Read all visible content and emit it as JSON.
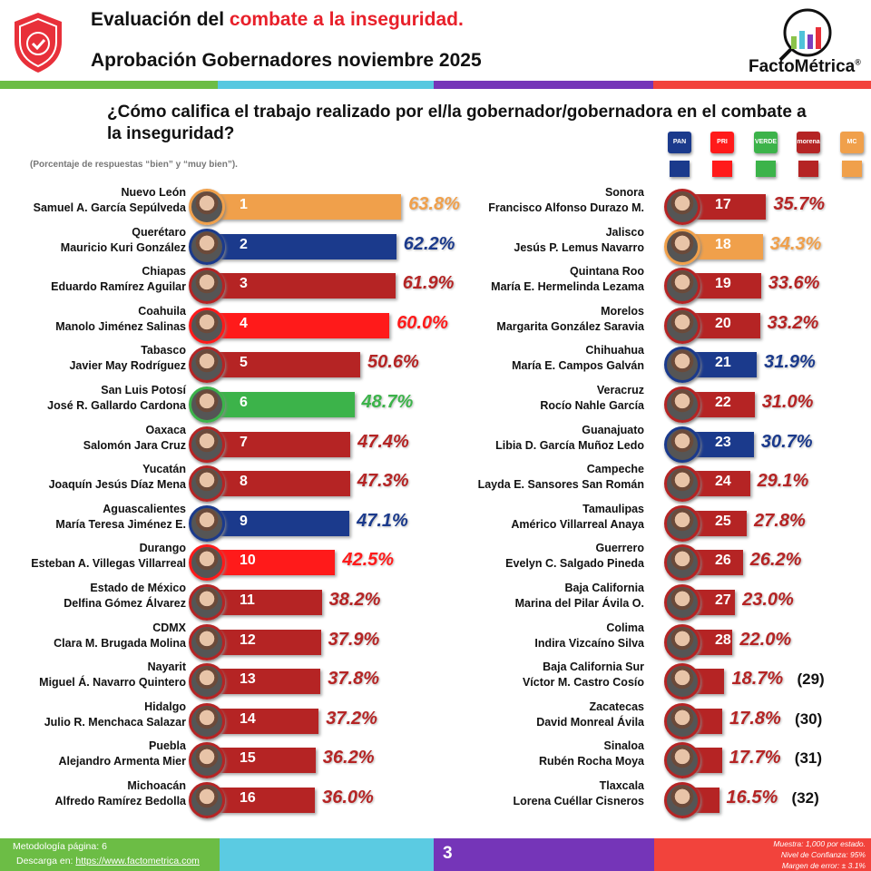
{
  "header": {
    "title_prefix": "Evaluación del ",
    "title_highlight": "combate a la inseguridad.",
    "subtitle": "Aprobación Gobernadores noviembre 2025",
    "brand": "FactoMétrica",
    "brand_mark": "®",
    "shield_icon": "shield-check-icon"
  },
  "question": "¿Cómo califica el trabajo realizado por el/la gobernador/gobernadora en el combate a la inseguridad?",
  "note": "(Porcentaje de respuestas “bien” y “muy bien”).",
  "legend": [
    {
      "party": "PAN",
      "color": "#1b3a8c"
    },
    {
      "party": "PRI",
      "color": "#ff1a1a"
    },
    {
      "party": "VERDE",
      "color": "#3cb34a"
    },
    {
      "party": "morena",
      "color": "#b52424"
    },
    {
      "party": "MC",
      "color": "#f0a04b"
    }
  ],
  "chart_data": {
    "type": "bar",
    "orientation": "horizontal",
    "unit": "%",
    "items": [
      {
        "rank": 1,
        "state": "Nuevo León",
        "governor": "Samuel A. García Sepúlveda",
        "value": 63.8,
        "party": "MC"
      },
      {
        "rank": 2,
        "state": "Querétaro",
        "governor": "Mauricio Kuri González",
        "value": 62.2,
        "party": "PAN"
      },
      {
        "rank": 3,
        "state": "Chiapas",
        "governor": "Eduardo Ramírez Aguilar",
        "value": 61.9,
        "party": "morena"
      },
      {
        "rank": 4,
        "state": "Coahuila",
        "governor": "Manolo Jiménez Salinas",
        "value": 60.0,
        "party": "PRI"
      },
      {
        "rank": 5,
        "state": "Tabasco",
        "governor": "Javier May Rodríguez",
        "value": 50.6,
        "party": "morena"
      },
      {
        "rank": 6,
        "state": "San Luis Potosí",
        "governor": "José R. Gallardo Cardona",
        "value": 48.7,
        "party": "VERDE"
      },
      {
        "rank": 7,
        "state": "Oaxaca",
        "governor": "Salomón Jara Cruz",
        "value": 47.4,
        "party": "morena"
      },
      {
        "rank": 8,
        "state": "Yucatán",
        "governor": "Joaquín Jesús Díaz Mena",
        "value": 47.3,
        "party": "morena"
      },
      {
        "rank": 9,
        "state": "Aguascalientes",
        "governor": "María Teresa Jiménez E.",
        "value": 47.1,
        "party": "PAN"
      },
      {
        "rank": 10,
        "state": "Durango",
        "governor": "Esteban A. Villegas Villarreal",
        "value": 42.5,
        "party": "PRI"
      },
      {
        "rank": 11,
        "state": "Estado de México",
        "governor": "Delfina Gómez Álvarez",
        "value": 38.2,
        "party": "morena"
      },
      {
        "rank": 12,
        "state": "CDMX",
        "governor": "Clara M. Brugada Molina",
        "value": 37.9,
        "party": "morena"
      },
      {
        "rank": 13,
        "state": "Nayarit",
        "governor": "Miguel Á. Navarro Quintero",
        "value": 37.8,
        "party": "morena"
      },
      {
        "rank": 14,
        "state": "Hidalgo",
        "governor": "Julio R. Menchaca Salazar",
        "value": 37.2,
        "party": "morena"
      },
      {
        "rank": 15,
        "state": "Puebla",
        "governor": "Alejandro Armenta Mier",
        "value": 36.2,
        "party": "morena"
      },
      {
        "rank": 16,
        "state": "Michoacán",
        "governor": "Alfredo Ramírez Bedolla",
        "value": 36.0,
        "party": "morena"
      },
      {
        "rank": 17,
        "state": "Sonora",
        "governor": "Francisco Alfonso Durazo M.",
        "value": 35.7,
        "party": "morena"
      },
      {
        "rank": 18,
        "state": "Jalisco",
        "governor": "Jesús P. Lemus Navarro",
        "value": 34.3,
        "party": "MC"
      },
      {
        "rank": 19,
        "state": "Quintana Roo",
        "governor": "María E. Hermelinda Lezama",
        "value": 33.6,
        "party": "morena"
      },
      {
        "rank": 20,
        "state": "Morelos",
        "governor": "Margarita González Saravia",
        "value": 33.2,
        "party": "morena"
      },
      {
        "rank": 21,
        "state": "Chihuahua",
        "governor": "María E. Campos Galván",
        "value": 31.9,
        "party": "PAN"
      },
      {
        "rank": 22,
        "state": "Veracruz",
        "governor": "Rocío Nahle García",
        "value": 31.0,
        "party": "morena"
      },
      {
        "rank": 23,
        "state": "Guanajuato",
        "governor": "Libia D. García Muñoz Ledo",
        "value": 30.7,
        "party": "PAN"
      },
      {
        "rank": 24,
        "state": "Campeche",
        "governor": "Layda E. Sansores San Román",
        "value": 29.1,
        "party": "morena"
      },
      {
        "rank": 25,
        "state": "Tamaulipas",
        "governor": "Américo Villarreal Anaya",
        "value": 27.8,
        "party": "morena"
      },
      {
        "rank": 26,
        "state": "Guerrero",
        "governor": "Evelyn C. Salgado Pineda",
        "value": 26.2,
        "party": "morena"
      },
      {
        "rank": 27,
        "state": "Baja California",
        "governor": "Marina del Pilar Ávila O.",
        "value": 23.0,
        "party": "morena"
      },
      {
        "rank": 28,
        "state": "Colima",
        "governor": "Indira Vizcaíno Silva",
        "value": 22.0,
        "party": "morena"
      },
      {
        "rank": 29,
        "state": "Baja California Sur",
        "governor": "Víctor M. Castro Cosío",
        "value": 18.7,
        "party": "morena"
      },
      {
        "rank": 30,
        "state": "Zacatecas",
        "governor": "David Monreal Ávila",
        "value": 17.8,
        "party": "morena"
      },
      {
        "rank": 31,
        "state": "Sinaloa",
        "governor": "Rubén Rocha Moya",
        "value": 17.7,
        "party": "morena"
      },
      {
        "rank": 32,
        "state": "Tlaxcala",
        "governor": "Lorena Cuéllar Cisneros",
        "value": 16.5,
        "party": "morena"
      }
    ]
  },
  "footer": {
    "methodology": "Metodología página: 6",
    "download_prefix": "Descarga en: ",
    "download_link": "https://www.factometrica.com",
    "page": "3",
    "sample": "Muestra:  1,000 por estado.",
    "confidence": "Nivel de Confianza: 95%",
    "error": "Margen de error: ± 3.1%"
  }
}
